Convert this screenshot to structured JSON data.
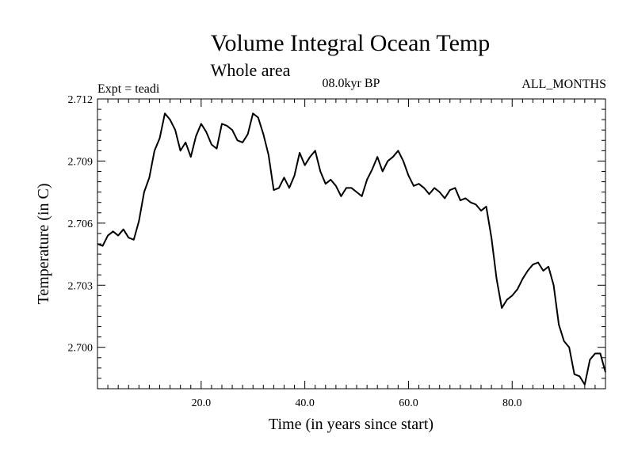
{
  "chart_data": {
    "type": "line",
    "title": "Volume Integral Ocean Temp",
    "subtitle": "Whole area",
    "experiment_label": "Expt = teadi",
    "period_label": "08.0kyr BP",
    "months_label": "ALL_MONTHS",
    "xlabel": "Time (in years since start)",
    "ylabel": "Temperature (in C)",
    "xlim": [
      0,
      98
    ],
    "ylim": [
      2.698,
      2.712
    ],
    "x_ticks": [
      20,
      40,
      60,
      80
    ],
    "x_tick_labels": [
      "20.0",
      "40.0",
      "60.0",
      "80.0"
    ],
    "y_ticks": [
      2.7,
      2.703,
      2.706,
      2.709,
      2.712
    ],
    "y_tick_labels": [
      "2.700",
      "2.703",
      "2.706",
      "2.709",
      "2.712"
    ],
    "line_color": "#000000",
    "series": [
      {
        "name": "Volume Integral Ocean Temp",
        "x": [
          0,
          1,
          2,
          3,
          4,
          5,
          6,
          7,
          8,
          9,
          10,
          11,
          12,
          13,
          14,
          15,
          16,
          17,
          18,
          19,
          20,
          21,
          22,
          23,
          24,
          25,
          26,
          27,
          28,
          29,
          30,
          31,
          32,
          33,
          34,
          35,
          36,
          37,
          38,
          39,
          40,
          41,
          42,
          43,
          44,
          45,
          46,
          47,
          48,
          49,
          50,
          51,
          52,
          53,
          54,
          55,
          56,
          57,
          58,
          59,
          60,
          61,
          62,
          63,
          64,
          65,
          66,
          67,
          68,
          69,
          70,
          71,
          72,
          73,
          74,
          75,
          76,
          77,
          78,
          79,
          80,
          81,
          82,
          83,
          84,
          85,
          86,
          87,
          88,
          89,
          90,
          91,
          92,
          93,
          94,
          95,
          96,
          97,
          98
        ],
        "values": [
          2.705,
          2.7049,
          2.7054,
          2.7056,
          2.7054,
          2.7057,
          2.7053,
          2.7052,
          2.7061,
          2.7075,
          2.7082,
          2.7095,
          2.7101,
          2.7113,
          2.711,
          2.7105,
          2.7095,
          2.7099,
          2.7092,
          2.7102,
          2.7108,
          2.7104,
          2.7098,
          2.7096,
          2.7108,
          2.7107,
          2.7105,
          2.71,
          2.7099,
          2.7103,
          2.7113,
          2.7111,
          2.7103,
          2.7093,
          2.7076,
          2.7077,
          2.7082,
          2.7077,
          2.7083,
          2.7094,
          2.7088,
          2.7092,
          2.7095,
          2.7085,
          2.7079,
          2.7081,
          2.7078,
          2.7073,
          2.7077,
          2.7077,
          2.7075,
          2.7073,
          2.7081,
          2.7086,
          2.7092,
          2.7085,
          2.709,
          2.7092,
          2.7095,
          2.709,
          2.7083,
          2.7078,
          2.7079,
          2.7077,
          2.7074,
          2.7077,
          2.7075,
          2.7072,
          2.7076,
          2.7077,
          2.7071,
          2.7072,
          2.707,
          2.7069,
          2.7066,
          2.7068,
          2.7053,
          2.7033,
          2.7019,
          2.7023,
          2.7025,
          2.7028,
          2.7033,
          2.7037,
          2.704,
          2.7041,
          2.7037,
          2.7039,
          2.703,
          2.7011,
          2.7003,
          2.7,
          2.6987,
          2.6986,
          2.6982,
          2.6994,
          2.6997,
          2.6997,
          2.6988
        ]
      }
    ]
  }
}
